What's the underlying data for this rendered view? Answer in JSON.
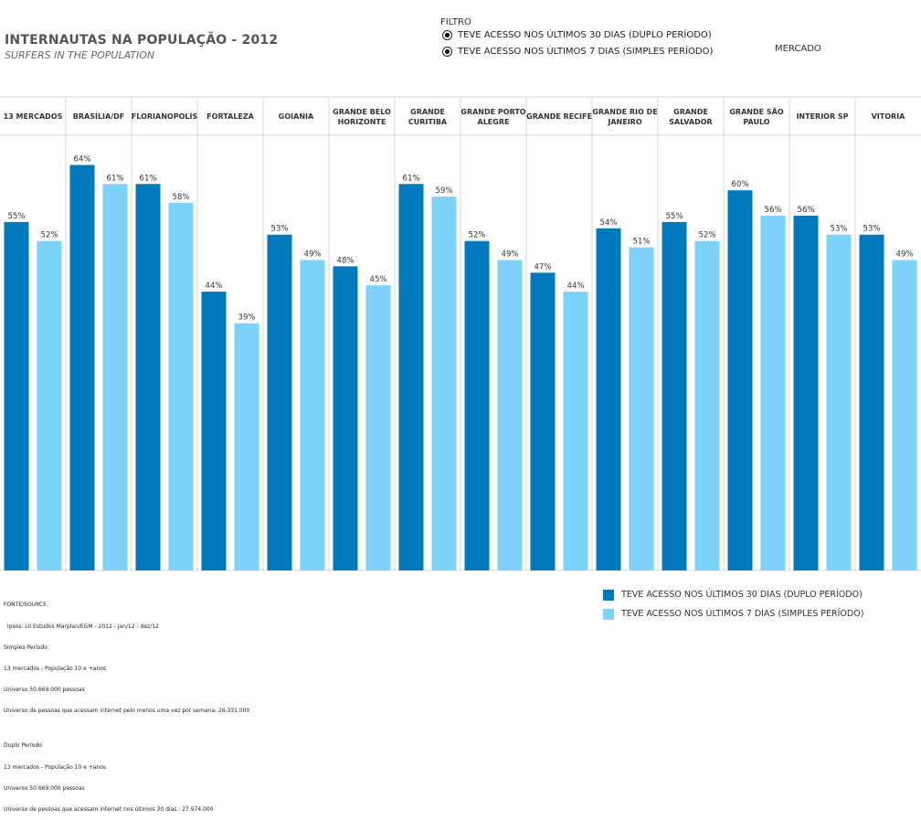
{
  "header": {
    "title": "INTERNAUTAS NA POPULAÇÃO - 2012",
    "subtitle": "SURFERS IN THE POPULATION"
  },
  "filter": {
    "label": "FILTRO",
    "options": [
      "TEVE ACESSO NOS ÚLTIMOS 30 DIAS (DUPLO PERÍODO)",
      "TEVE ACESSO NOS ÚLTIMOS 7 DIAS (SIMPLES PERÍODO)"
    ]
  },
  "market_label": "MERCADO",
  "colors": {
    "series_30_days": "#0079BE",
    "series_7_days": "#7DD2F9",
    "grid": "#D5D5D5"
  },
  "chart_data": {
    "type": "bar",
    "title": "INTERNAUTAS NA POPULAÇÃO - 2012",
    "categories": [
      [
        "13 MERCADOS"
      ],
      [
        "BRASÍLIA/DF"
      ],
      [
        "FLORIANOPOLIS"
      ],
      [
        "FORTALEZA"
      ],
      [
        "GOIANIA"
      ],
      [
        "GRANDE BELO",
        "HORIZONTE"
      ],
      [
        "GRANDE",
        "CURITIBA"
      ],
      [
        "GRANDE PORTO",
        "ALEGRE"
      ],
      [
        "GRANDE RECIFE"
      ],
      [
        "GRANDE RIO DE",
        "JANEIRO"
      ],
      [
        "GRANDE",
        "SALVADOR"
      ],
      [
        "GRANDE SÃO",
        "PAULO"
      ],
      [
        "INTERIOR SP"
      ],
      [
        "VITORIA"
      ]
    ],
    "series": [
      {
        "name": "TEVE ACESSO NOS ÚLTIMOS 30 DIAS (DUPLO PERÍODO)",
        "values": [
          55,
          64,
          61,
          44,
          53,
          48,
          61,
          52,
          47,
          54,
          55,
          60,
          56,
          53
        ]
      },
      {
        "name": "TEVE ACESSO NOS ÚLTIMOS 7 DIAS (SIMPLES PERÍODO)",
        "values": [
          52,
          61,
          58,
          39,
          49,
          45,
          59,
          49,
          44,
          51,
          52,
          56,
          53,
          49
        ]
      }
    ],
    "value_suffix": "%",
    "ylim": [
      0,
      70
    ],
    "legend_position": "bottom-right"
  },
  "source": {
    "lines": [
      "FONTE/SOURCE:",
      "  Ipsos: LII Estudos Marplan/EGM - 2012 - jan/12 - dez/12",
      "Simples Período",
      "13 mercados - População 10 e +anos",
      "Universo 50.669.000 pessoas",
      "Universo de pessoas que acessam internet pelo menos uma vez por semana: 26.331.000",
      "",
      "Duplo Período",
      "13 mercados - População 10 e +anos",
      "Universo 50.669.000 pessoas",
      "Universo de pessoas que acessam internet nos últimos 30 dias : 27.974.000"
    ]
  }
}
